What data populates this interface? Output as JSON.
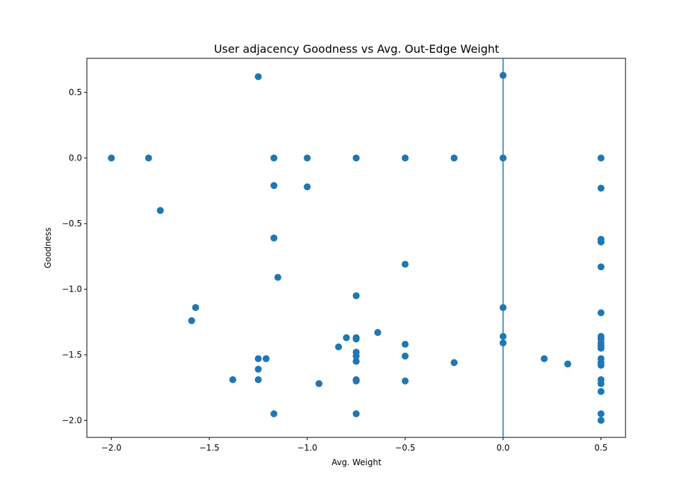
{
  "chart_data": {
    "type": "scatter",
    "title": "User adjacency Goodness vs Avg. Out-Edge Weight",
    "xlabel": "Avg. Weight",
    "ylabel": "Goodness",
    "xlim": [
      -2.125,
      0.625
    ],
    "ylim": [
      -2.13,
      0.76
    ],
    "xticks": [
      -2.0,
      -1.5,
      -1.0,
      -0.5,
      0.0,
      0.5
    ],
    "xtick_labels": [
      "−2.0",
      "−1.5",
      "−1.0",
      "−0.5",
      "0.0",
      "0.5"
    ],
    "yticks": [
      -2.0,
      -1.5,
      -1.0,
      -0.5,
      0.0,
      0.5
    ],
    "ytick_labels": [
      "−2.0",
      "−1.5",
      "−1.0",
      "−0.5",
      "0.0",
      "0.5"
    ],
    "grid": false,
    "marker_color": "#1f77b4",
    "vline": {
      "x": 0.0,
      "color": "#1f77b4"
    },
    "points": [
      [
        -2.0,
        0.0
      ],
      [
        -1.81,
        0.0
      ],
      [
        -1.75,
        -0.4
      ],
      [
        -1.59,
        -1.24
      ],
      [
        -1.57,
        -1.14
      ],
      [
        -1.38,
        -1.69
      ],
      [
        -1.25,
        0.62
      ],
      [
        -1.25,
        -1.53
      ],
      [
        -1.25,
        -1.61
      ],
      [
        -1.25,
        -1.69
      ],
      [
        -1.21,
        -1.53
      ],
      [
        -1.17,
        0.0
      ],
      [
        -1.17,
        -0.21
      ],
      [
        -1.17,
        -0.61
      ],
      [
        -1.17,
        -1.95
      ],
      [
        -1.15,
        -0.91
      ],
      [
        -1.0,
        0.0
      ],
      [
        -1.0,
        -0.22
      ],
      [
        -0.94,
        -1.72
      ],
      [
        -0.84,
        -1.44
      ],
      [
        -0.8,
        -1.37
      ],
      [
        -0.75,
        0.0
      ],
      [
        -0.75,
        -1.05
      ],
      [
        -0.75,
        -1.37
      ],
      [
        -0.75,
        -1.38
      ],
      [
        -0.75,
        -1.48
      ],
      [
        -0.75,
        -1.51
      ],
      [
        -0.75,
        -1.55
      ],
      [
        -0.75,
        -1.69
      ],
      [
        -0.75,
        -1.7
      ],
      [
        -0.75,
        -1.95
      ],
      [
        -0.64,
        -1.33
      ],
      [
        -0.5,
        0.0
      ],
      [
        -0.5,
        -0.81
      ],
      [
        -0.5,
        -1.42
      ],
      [
        -0.5,
        -1.51
      ],
      [
        -0.5,
        -1.7
      ],
      [
        -0.25,
        0.0
      ],
      [
        -0.25,
        -1.56
      ],
      [
        0.0,
        0.63
      ],
      [
        0.0,
        0.0
      ],
      [
        0.0,
        -1.14
      ],
      [
        0.0,
        -1.36
      ],
      [
        0.0,
        -1.41
      ],
      [
        0.21,
        -1.53
      ],
      [
        0.33,
        -1.57
      ],
      [
        0.5,
        0.0
      ],
      [
        0.5,
        -0.23
      ],
      [
        0.5,
        -0.62
      ],
      [
        0.5,
        -0.64
      ],
      [
        0.5,
        -0.83
      ],
      [
        0.5,
        -1.18
      ],
      [
        0.5,
        -1.36
      ],
      [
        0.5,
        -1.38
      ],
      [
        0.5,
        -1.41
      ],
      [
        0.5,
        -1.43
      ],
      [
        0.5,
        -1.45
      ],
      [
        0.5,
        -1.53
      ],
      [
        0.5,
        -1.56
      ],
      [
        0.5,
        -1.58
      ],
      [
        0.5,
        -1.69
      ],
      [
        0.5,
        -1.72
      ],
      [
        0.5,
        -1.78
      ],
      [
        0.5,
        -1.95
      ],
      [
        0.5,
        -2.0
      ]
    ]
  }
}
